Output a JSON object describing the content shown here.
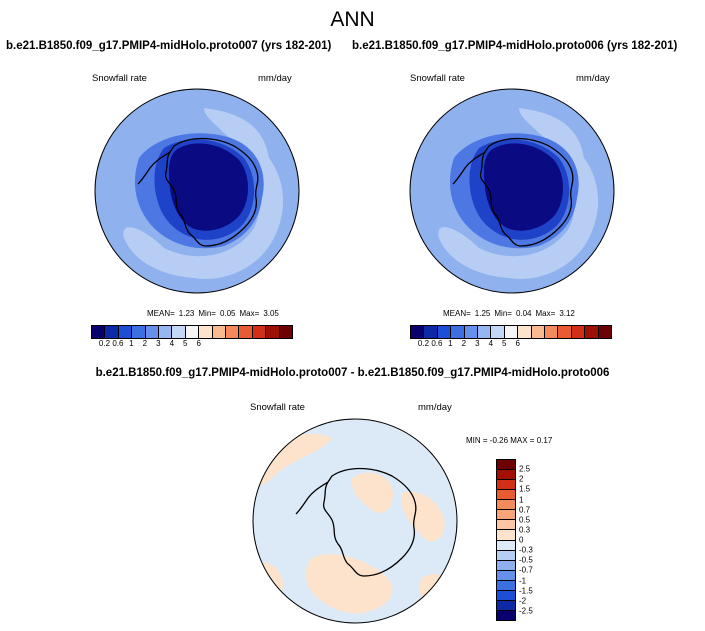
{
  "title": "ANN",
  "panels": {
    "left": {
      "case_title": "b.e21.B1850.f09_g17.PMIP4-midHolo.proto007 (yrs 182-201)",
      "variable": "Snowfall rate",
      "units": "mm/day",
      "mean_label": "MEAN=",
      "mean_value": "1.23",
      "min_label": "Min=",
      "min_value": "0.05",
      "max_label": "Max=",
      "max_value": "3.05"
    },
    "right": {
      "case_title": "b.e21.B1850.f09_g17.PMIP4-midHolo.proto006 (yrs 182-201)",
      "variable": "Snowfall rate",
      "units": "mm/day",
      "mean_label": "MEAN=",
      "mean_value": "1.25",
      "min_label": "Min=",
      "min_value": "0.04",
      "max_label": "Max=",
      "max_value": "3.12"
    },
    "diff": {
      "case_title": "b.e21.B1850.f09_g17.PMIP4-midHolo.proto007 - b.e21.B1850.f09_g17.PMIP4-midHolo.proto006",
      "variable": "Snowfall rate",
      "units": "mm/day",
      "minmax_text": "MIN =  -0.26 MAX =   0.17"
    }
  },
  "colorbar_abs": {
    "labels": [
      "0.2",
      "0.6",
      "1",
      "2",
      "3",
      "4",
      "5",
      "6"
    ],
    "colors": [
      "#08006e",
      "#0c2aa8",
      "#1c4fd6",
      "#3b6fe2",
      "#6690ec",
      "#95b6f2",
      "#c3d8f8",
      "#f5f5f5",
      "#fde3cc",
      "#fab98f",
      "#f48a5c",
      "#ea5a33",
      "#d22f16",
      "#9c1006",
      "#6d0000"
    ]
  },
  "colorbar_diff": {
    "labels": [
      "2.5",
      "2",
      "1.5",
      "1",
      "0.7",
      "0.5",
      "0.3",
      "0",
      "-0.3",
      "-0.5",
      "-0.7",
      "-1",
      "-1.5",
      "-2",
      "-2.5"
    ],
    "colors": [
      "#6d0000",
      "#a50f00",
      "#d22f16",
      "#ea5a33",
      "#f48a5c",
      "#f8a47a",
      "#fbc6a4",
      "#fde3cc",
      "#dceaf8",
      "#b5cff4",
      "#8eb0ee",
      "#6690ec",
      "#3b6fe2",
      "#1c4fd6",
      "#0c2aa8",
      "#08006e"
    ]
  },
  "map_colors": {
    "ocean_base": "#8fb1ee",
    "ring_light": "#b7cdf4",
    "mid_blue": "#4d78e4",
    "deep_blue": "#1f43c8",
    "core_navy": "#0a0a82",
    "diff_base": "#dceaf8",
    "diff_pos": "#fde3cc",
    "coast": "#000000"
  }
}
